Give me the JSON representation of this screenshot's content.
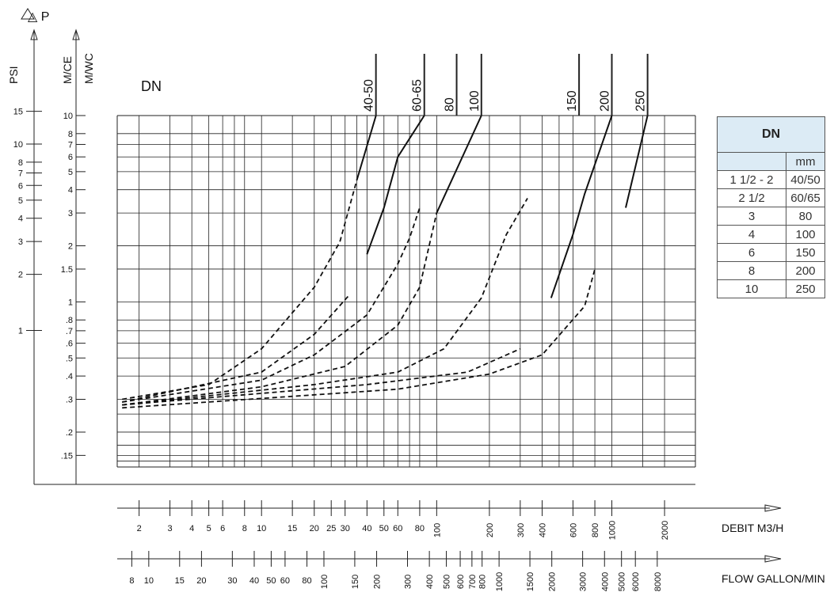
{
  "chart_data": {
    "type": "line",
    "title": "",
    "yaxis_symbol": "△ P",
    "ylabel_psi": "PSI",
    "ylabel_mce": "M/CE",
    "ylabel_mwc": "M/WC",
    "dn_label": "DN",
    "yscale": "log",
    "ylim": [
      0.13,
      10
    ],
    "xscale": "log",
    "xlim": [
      1.5,
      3000
    ],
    "grid": true,
    "psi_ticks": [
      "15",
      "10",
      "8",
      "7",
      "6",
      "5",
      "4",
      "3",
      "2",
      "1"
    ],
    "m_ticks": [
      "10",
      "8",
      "7",
      "6",
      "5",
      "4",
      "3",
      "2",
      "1.5",
      "1",
      ".8",
      ".7",
      ".6",
      ".5",
      ".4",
      ".3",
      ".2",
      ".15"
    ],
    "m3h_label": "DEBIT  M3/H",
    "m3h_ticks": [
      "2",
      "3",
      "4",
      "5",
      "6",
      "8",
      "10",
      "15",
      "20",
      "25",
      "30",
      "40",
      "50",
      "60",
      "80",
      "100",
      "200",
      "300",
      "400",
      "600",
      "800",
      "1000",
      "2000"
    ],
    "gpm_label": "FLOW GALLON/MIN",
    "gpm_ticks": [
      "8",
      "10",
      "15",
      "20",
      "30",
      "40",
      "50",
      "60",
      "80",
      "100",
      "150",
      "200",
      "300",
      "400",
      "500",
      "600",
      "700",
      "800",
      "1000",
      "1500",
      "2000",
      "3000",
      "4000",
      "5000",
      "6000",
      "8000"
    ],
    "series": [
      {
        "name": "40-50",
        "points": [
          [
            1.6,
            0.3
          ],
          [
            5,
            0.36
          ],
          [
            10,
            0.56
          ],
          [
            20,
            1.2
          ],
          [
            28,
            2.1
          ],
          [
            35,
            4.5
          ],
          [
            45,
            10
          ]
        ],
        "solid_from": 35
      },
      {
        "name": "60-65",
        "points": [
          [
            1.6,
            0.29
          ],
          [
            10,
            0.42
          ],
          [
            20,
            0.67
          ],
          [
            32,
            1.1
          ],
          [
            40,
            1.8
          ],
          [
            50,
            3.2
          ],
          [
            60,
            6
          ],
          [
            85,
            10
          ]
        ],
        "solid_from": 35
      },
      {
        "name": "80",
        "points": [
          [
            1.6,
            0.29
          ],
          [
            10,
            0.38
          ],
          [
            20,
            0.52
          ],
          [
            40,
            0.85
          ],
          [
            60,
            1.6
          ],
          [
            70,
            2.2
          ],
          [
            80,
            3.2
          ],
          [
            130,
            10
          ]
        ],
        "solid_from": 82
      },
      {
        "name": "100",
        "points": [
          [
            1.6,
            0.28
          ],
          [
            10,
            0.35
          ],
          [
            30,
            0.45
          ],
          [
            60,
            0.75
          ],
          [
            80,
            1.2
          ],
          [
            100,
            3
          ],
          [
            180,
            10
          ]
        ],
        "solid_from": 100
      },
      {
        "name": "150",
        "points": [
          [
            1.6,
            0.28
          ],
          [
            20,
            0.36
          ],
          [
            60,
            0.42
          ],
          [
            110,
            0.56
          ],
          [
            180,
            1.05
          ],
          [
            250,
            2.3
          ],
          [
            330,
            3.6
          ],
          [
            650,
            10
          ]
        ],
        "solid_from": 340
      },
      {
        "name": "200",
        "points": [
          [
            1.6,
            0.28
          ],
          [
            40,
            0.36
          ],
          [
            150,
            0.42
          ],
          [
            300,
            0.56
          ],
          [
            450,
            1.05
          ],
          [
            600,
            2.3
          ],
          [
            700,
            3.8
          ],
          [
            1000,
            10
          ]
        ],
        "solid_from": 440
      },
      {
        "name": "250",
        "points": [
          [
            1.6,
            0.27
          ],
          [
            60,
            0.34
          ],
          [
            200,
            0.41
          ],
          [
            400,
            0.52
          ],
          [
            700,
            0.95
          ],
          [
            800,
            1.5
          ],
          [
            1200,
            3.2
          ],
          [
            1600,
            10
          ]
        ],
        "solid_from": 940
      }
    ]
  },
  "table": {
    "title": "DN",
    "unit_header": "mm",
    "rows": [
      {
        "inch": "1 1/2 - 2",
        "mm": "40/50"
      },
      {
        "inch": "2 1/2",
        "mm": "60/65"
      },
      {
        "inch": "3",
        "mm": "80"
      },
      {
        "inch": "4",
        "mm": "100"
      },
      {
        "inch": "6",
        "mm": "150"
      },
      {
        "inch": "8",
        "mm": "200"
      },
      {
        "inch": "10",
        "mm": "250"
      }
    ]
  }
}
